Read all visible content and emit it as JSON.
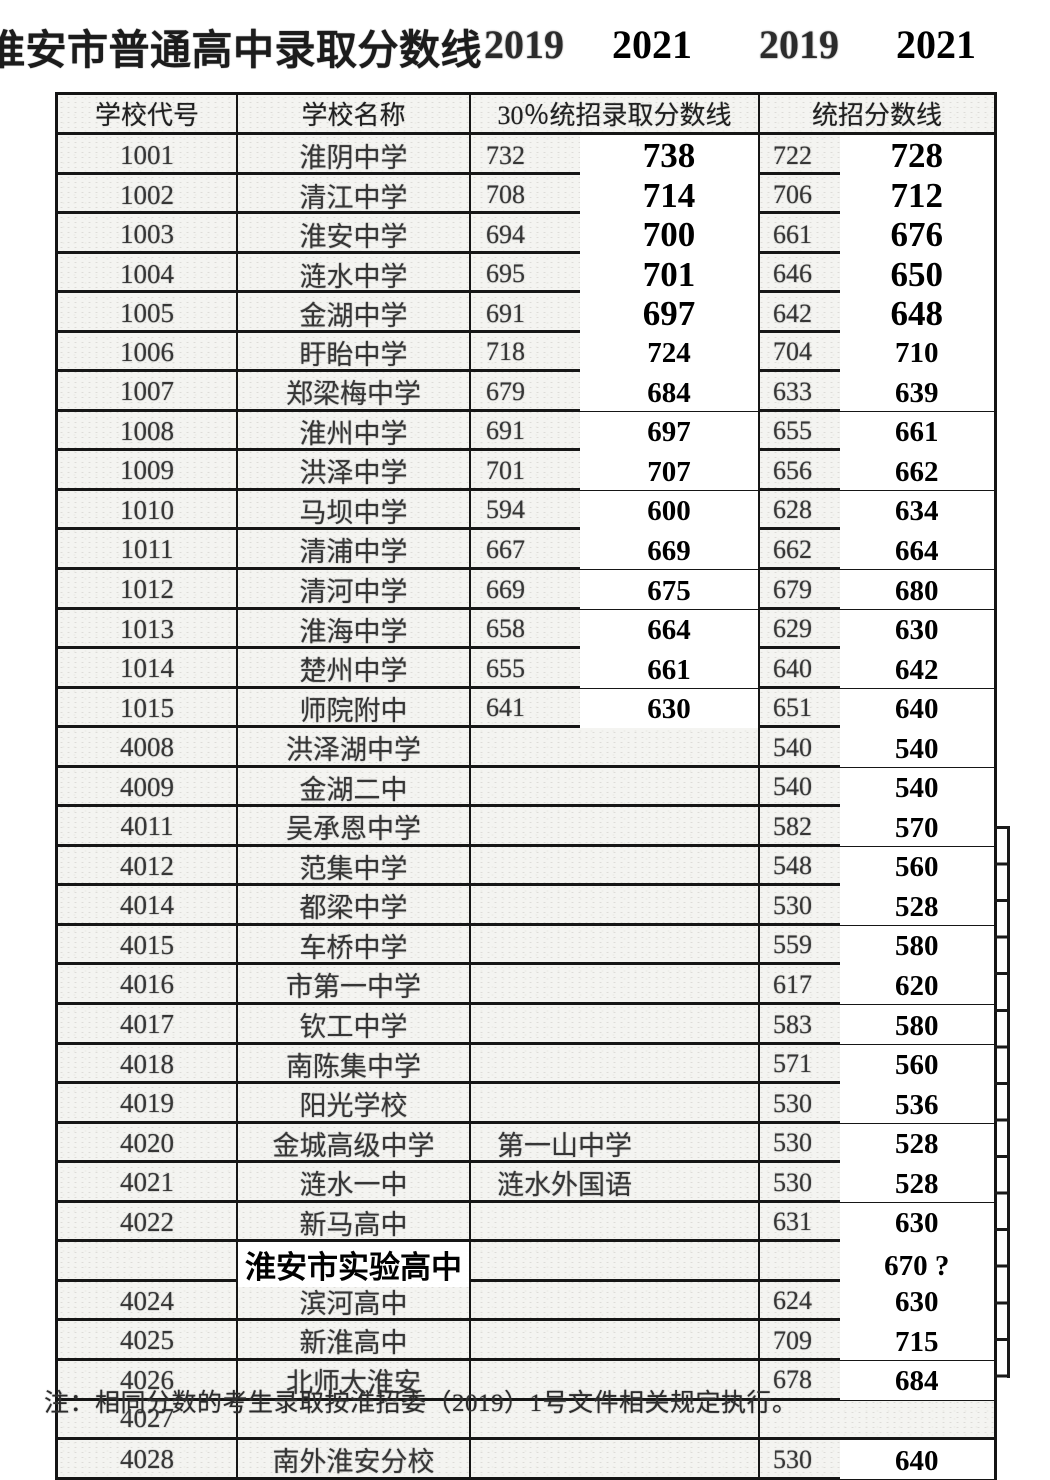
{
  "title": {
    "text": "淮安市普通高中录取分数线",
    "years": [
      "2019",
      "2021",
      "2019",
      "2021"
    ]
  },
  "table": {
    "headers": [
      "学校代号",
      "学校名称",
      "30％统招录取分数线",
      "统招分数线"
    ],
    "rows": [
      {
        "code": "1001",
        "name": "淮阴中学",
        "c3a": "732",
        "c3b": "738",
        "c4a": "722",
        "c4b": "728"
      },
      {
        "code": "1002",
        "name": "清江中学",
        "c3a": "708",
        "c3b": "714",
        "c4a": "706",
        "c4b": "712"
      },
      {
        "code": "1003",
        "name": "淮安中学",
        "c3a": "694",
        "c3b": "700",
        "c4a": "661",
        "c4b": "676"
      },
      {
        "code": "1004",
        "name": "涟水中学",
        "c3a": "695",
        "c3b": "701",
        "c4a": "646",
        "c4b": "650"
      },
      {
        "code": "1005",
        "name": "金湖中学",
        "c3a": "691",
        "c3b": "697",
        "c4a": "642",
        "c4b": "648"
      },
      {
        "code": "1006",
        "name": "盱眙中学",
        "c3a": "718",
        "c3b": "724",
        "c4a": "704",
        "c4b": "710"
      },
      {
        "code": "1007",
        "name": "郑梁梅中学",
        "c3a": "679",
        "c3b": "684",
        "c4a": "633",
        "c4b": "639"
      },
      {
        "code": "1008",
        "name": "淮州中学",
        "c3a": "691",
        "c3b": "697",
        "c4a": "655",
        "c4b": "661"
      },
      {
        "code": "1009",
        "name": "洪泽中学",
        "c3a": "701",
        "c3b": "707",
        "c4a": "656",
        "c4b": "662"
      },
      {
        "code": "1010",
        "name": "马坝中学",
        "c3a": "594",
        "c3b": "600",
        "c4a": "628",
        "c4b": "634"
      },
      {
        "code": "1011",
        "name": "清浦中学",
        "c3a": "667",
        "c3b": "669",
        "c4a": "662",
        "c4b": "664"
      },
      {
        "code": "1012",
        "name": "清河中学",
        "c3a": "669",
        "c3b": "675",
        "c4a": "679",
        "c4b": "680"
      },
      {
        "code": "1013",
        "name": "淮海中学",
        "c3a": "658",
        "c3b": "664",
        "c4a": "629",
        "c4b": "630"
      },
      {
        "code": "1014",
        "name": "楚州中学",
        "c3a": "655",
        "c3b": "661",
        "c4a": "640",
        "c4b": "642"
      },
      {
        "code": "1015",
        "name": "师院附中",
        "c3a": "641",
        "c3b": "630",
        "c4a": "651",
        "c4b": "640"
      },
      {
        "code": "4008",
        "name": "洪泽湖中学",
        "c4a": "540",
        "c4b": "540"
      },
      {
        "code": "4009",
        "name": "金湖二中",
        "c4a": "540",
        "c4b": "540"
      },
      {
        "code": "4011",
        "name": "吴承恩中学",
        "c4a": "582",
        "c4b": "570"
      },
      {
        "code": "4012",
        "name": "范集中学",
        "c4a": "548",
        "c4b": "560"
      },
      {
        "code": "4014",
        "name": "都梁中学",
        "c4a": "530",
        "c4b": "528"
      },
      {
        "code": "4015",
        "name": "车桥中学",
        "c4a": "559",
        "c4b": "580"
      },
      {
        "code": "4016",
        "name": "市第一中学",
        "c4a": "617",
        "c4b": "620"
      },
      {
        "code": "4017",
        "name": "钦工中学",
        "c4a": "583",
        "c4b": "580"
      },
      {
        "code": "4018",
        "name": "南陈集中学",
        "c4a": "571",
        "c4b": "560"
      },
      {
        "code": "4019",
        "name": "阳光学校",
        "c4a": "530",
        "c4b": "536"
      },
      {
        "code": "4020",
        "name": "金城高级中学",
        "c3text": "第一山中学",
        "c4a": "530",
        "c4b": "528"
      },
      {
        "code": "4021",
        "name": "涟水一中",
        "c3text": "涟水外国语",
        "c4a": "530",
        "c4b": "528"
      },
      {
        "code": "4022",
        "name": "新马高中",
        "c4a": "631",
        "c4b": "630"
      },
      {
        "name": "淮安市实验高中",
        "bold": true,
        "c4b": "670 ?"
      },
      {
        "code": "4024",
        "name": "滨河高中",
        "c4a": "624",
        "c4b": "630"
      },
      {
        "code": "4025",
        "name": "新淮高中",
        "c4a": "709",
        "c4b": "715"
      },
      {
        "code": "4026",
        "name": "北师大淮安",
        "c4a": "678",
        "c4b": "684"
      },
      {
        "code": "4027",
        "name": ""
      },
      {
        "code": "4028",
        "name": "南外淮安分校",
        "c4a": "530",
        "c4b": "640"
      }
    ]
  },
  "note": "注：相同分数的考生录取按淮招委（2019）1号文件相关规定执行。",
  "colors": {
    "overlay_ink": "#000000",
    "scan_ink": "#363636",
    "border": "#161616",
    "cell_background": "#f4f4f1",
    "whiteout": "#ffffff"
  }
}
